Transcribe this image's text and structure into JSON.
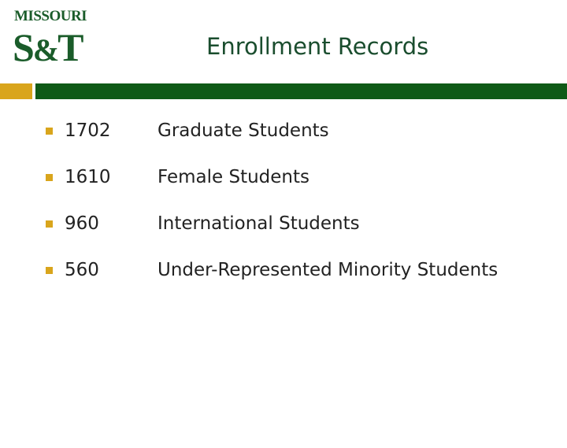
{
  "header": {
    "logo_top": "MISSOURI",
    "logo_main_s": "S",
    "logo_main_amp": "&",
    "logo_main_t": "T",
    "title": "Enrollment Records"
  },
  "colors": {
    "brand_green": "#0f5a17",
    "brand_gold": "#d9a51c"
  },
  "records": [
    {
      "count": "1702",
      "label": "Graduate Students"
    },
    {
      "count": "1610",
      "label": "Female Students"
    },
    {
      "count": "960",
      "label": "International Students"
    },
    {
      "count": "560",
      "label": "Under-Represented Minority Students"
    }
  ]
}
